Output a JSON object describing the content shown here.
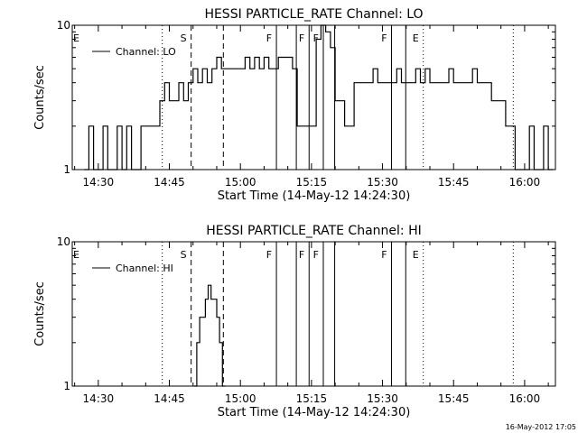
{
  "chart_data": [
    {
      "type": "line",
      "title": "HESSI PARTICLE_RATE Channel: LO",
      "xlabel": "Start Time (14-May-12 14:24:30)",
      "ylabel": "Counts/sec",
      "x_scale": "time",
      "x_tick_labels": [
        "14:30",
        "14:45",
        "15:00",
        "15:15",
        "15:30",
        "15:45",
        "16:00"
      ],
      "x_range_min": [
        24.5,
        126.5
      ],
      "y_scale": "log",
      "ylim": [
        1,
        10
      ],
      "y_tick_labels": [
        "1",
        "10"
      ],
      "legend": {
        "label": "Channel: LO",
        "placement": "top-left"
      },
      "series": [
        {
          "x_min": [
            27,
            28,
            29,
            30,
            31,
            32,
            33,
            34,
            35,
            36,
            37,
            38,
            39,
            40,
            41,
            42,
            43,
            44,
            45,
            46,
            47,
            48,
            49,
            50,
            51,
            52,
            53,
            54,
            55,
            56,
            57,
            58,
            59,
            60,
            61,
            62,
            63,
            64,
            65,
            66,
            67,
            68,
            69,
            70,
            71,
            72,
            73,
            74,
            75,
            76,
            77,
            78,
            79,
            80,
            81,
            82,
            83,
            84,
            85,
            86,
            87,
            88,
            89,
            90,
            91,
            92,
            93,
            94,
            95,
            96,
            97,
            98,
            99,
            100,
            101,
            102,
            103,
            104,
            105,
            106,
            107,
            108,
            109,
            110,
            111,
            112,
            113,
            114,
            115,
            116,
            117,
            118,
            119,
            120,
            121,
            122,
            123,
            124,
            125
          ],
          "values": [
            1,
            2,
            1,
            1,
            2,
            1,
            1,
            2,
            1,
            2,
            1,
            1,
            2,
            2,
            2,
            2,
            3,
            4,
            3,
            3,
            4,
            3,
            4,
            5,
            4,
            5,
            4,
            5,
            6,
            5,
            5,
            5,
            5,
            5,
            6,
            5,
            6,
            5,
            6,
            5,
            5,
            6,
            6,
            6,
            5,
            2,
            2,
            2,
            2,
            8,
            10,
            9,
            7,
            3,
            3,
            2,
            2,
            4,
            4,
            4,
            4,
            5,
            4,
            4,
            4,
            4,
            5,
            4,
            4,
            4,
            5,
            4,
            5,
            4,
            4,
            4,
            4,
            5,
            4,
            4,
            4,
            4,
            5,
            4,
            4,
            4,
            3,
            3,
            3,
            2,
            2,
            1,
            1,
            1,
            2,
            1,
            1,
            2,
            1
          ]
        }
      ],
      "event_lines": [
        {
          "x_min": 43.5,
          "style": "dotted",
          "label": ""
        },
        {
          "x_min": 49.6,
          "style": "dashed",
          "label": "S"
        },
        {
          "x_min": 56.4,
          "style": "dashed",
          "label": ""
        },
        {
          "x_min": 67.6,
          "style": "solid",
          "label": "F"
        },
        {
          "x_min": 71.8,
          "style": "solid",
          "label": ""
        },
        {
          "x_min": 74.5,
          "style": "solid",
          "label": "F"
        },
        {
          "x_min": 77.5,
          "style": "solid",
          "label": "F"
        },
        {
          "x_min": 79.9,
          "style": "solid",
          "label": ""
        },
        {
          "x_min": 91.9,
          "style": "solid",
          "label": "F"
        },
        {
          "x_min": 94.9,
          "style": "solid",
          "label": ""
        },
        {
          "x_min": 98.6,
          "style": "dotted",
          "label": "E"
        },
        {
          "x_min": 117.6,
          "style": "dotted",
          "label": ""
        }
      ],
      "edge_label": "E"
    },
    {
      "type": "line",
      "title": "HESSI PARTICLE_RATE Channel: HI",
      "xlabel": "Start Time (14-May-12 14:24:30)",
      "ylabel": "Counts/sec",
      "x_scale": "time",
      "x_tick_labels": [
        "14:30",
        "14:45",
        "15:00",
        "15:15",
        "15:30",
        "15:45",
        "16:00"
      ],
      "x_range_min": [
        24.5,
        126.5
      ],
      "y_scale": "log",
      "ylim": [
        1,
        10
      ],
      "y_tick_labels": [
        "1",
        "10"
      ],
      "legend": {
        "label": "Channel: HI",
        "placement": "top-left"
      },
      "series": [
        {
          "x_min": [
            50.2,
            50.8,
            51.4,
            52.0,
            52.6,
            53.2,
            53.8,
            54.4,
            55.0,
            55.6,
            56.2
          ],
          "values": [
            1,
            2,
            3,
            3,
            4,
            5,
            4,
            4,
            3,
            2,
            1
          ]
        }
      ],
      "event_lines": [
        {
          "x_min": 43.5,
          "style": "dotted",
          "label": ""
        },
        {
          "x_min": 49.6,
          "style": "dashed",
          "label": "S"
        },
        {
          "x_min": 56.4,
          "style": "dashed",
          "label": ""
        },
        {
          "x_min": 67.6,
          "style": "solid",
          "label": "F"
        },
        {
          "x_min": 71.8,
          "style": "solid",
          "label": ""
        },
        {
          "x_min": 74.5,
          "style": "solid",
          "label": "F"
        },
        {
          "x_min": 77.5,
          "style": "solid",
          "label": "F"
        },
        {
          "x_min": 79.9,
          "style": "solid",
          "label": ""
        },
        {
          "x_min": 91.9,
          "style": "solid",
          "label": "F"
        },
        {
          "x_min": 94.9,
          "style": "solid",
          "label": ""
        },
        {
          "x_min": 98.6,
          "style": "dotted",
          "label": "E"
        },
        {
          "x_min": 117.6,
          "style": "dotted",
          "label": ""
        }
      ],
      "edge_label": "E"
    }
  ],
  "timestamp": "16-May-2012 17:05"
}
